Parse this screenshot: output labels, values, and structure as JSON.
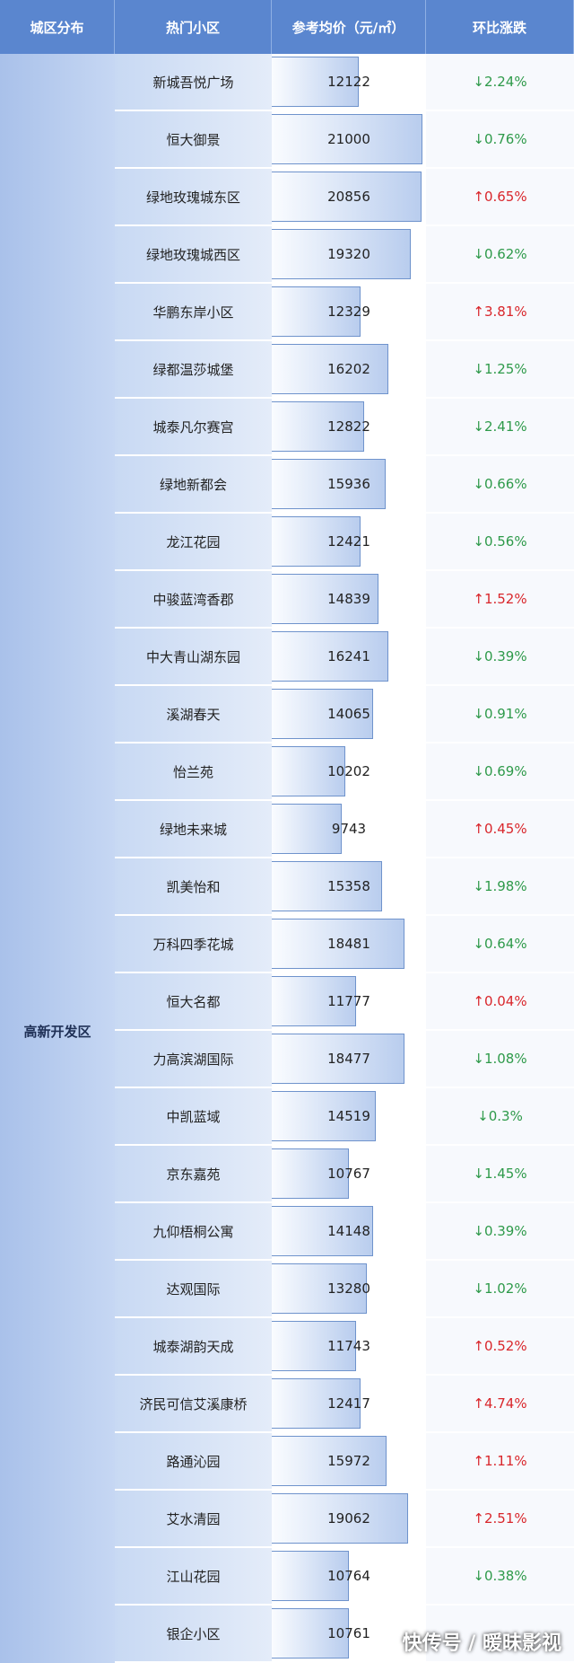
{
  "header": {
    "district": "城区分布",
    "community": "热门小区",
    "price": "参考均价（元/㎡）",
    "change": "环比涨跌"
  },
  "table": {
    "district": "高新开发区",
    "rows": [
      [
        "新城吾悦广场",
        12122,
        "↓2.24%"
      ],
      [
        "恒大御景",
        21000,
        "↓0.76%"
      ],
      [
        "绿地玫瑰城东区",
        20856,
        "↑0.65%"
      ],
      [
        "绿地玫瑰城西区",
        19320,
        "↓0.62%"
      ],
      [
        "华鹏东岸小区",
        12329,
        "↑3.81%"
      ],
      [
        "绿都温莎城堡",
        16202,
        "↓1.25%"
      ],
      [
        "城泰凡尔赛宫",
        12822,
        "↓2.41%"
      ],
      [
        "绿地新都会",
        15936,
        "↓0.66%"
      ],
      [
        "龙江花园",
        12421,
        "↓0.56%"
      ],
      [
        "中骏蓝湾香郡",
        14839,
        "↑1.52%"
      ],
      [
        "中大青山湖东园",
        16241,
        "↓0.39%"
      ],
      [
        "溪湖春天",
        14065,
        "↓0.91%"
      ],
      [
        "怡兰苑",
        10202,
        "↓0.69%"
      ],
      [
        "绿地未来城",
        9743,
        "↑0.45%"
      ],
      [
        "凯美怡和",
        15358,
        "↓1.98%"
      ],
      [
        "万科四季花城",
        18481,
        "↓0.64%"
      ],
      [
        "恒大名都",
        11777,
        "↑0.04%"
      ],
      [
        "力高滨湖国际",
        18477,
        "↓1.08%"
      ],
      [
        "中凯蓝域",
        14519,
        "↓0.3%"
      ],
      [
        "京东嘉苑",
        10767,
        "↓1.45%"
      ],
      [
        "九仰梧桐公寓",
        14148,
        "↓0.39%"
      ],
      [
        "达观国际",
        13280,
        "↓1.02%"
      ],
      [
        "城泰湖韵天成",
        11743,
        "↑0.52%"
      ],
      [
        "济民可信艾溪康桥",
        12417,
        "↑4.74%"
      ],
      [
        "路通沁园",
        15972,
        "↑1.11%"
      ],
      [
        "艾水清园",
        19062,
        "↑2.51%"
      ],
      [
        "江山花园",
        10764,
        "↓0.38%"
      ],
      [
        "银企小区",
        10761
      ]
    ]
  },
  "watermark": "快传号 / 暖昧影视"
}
